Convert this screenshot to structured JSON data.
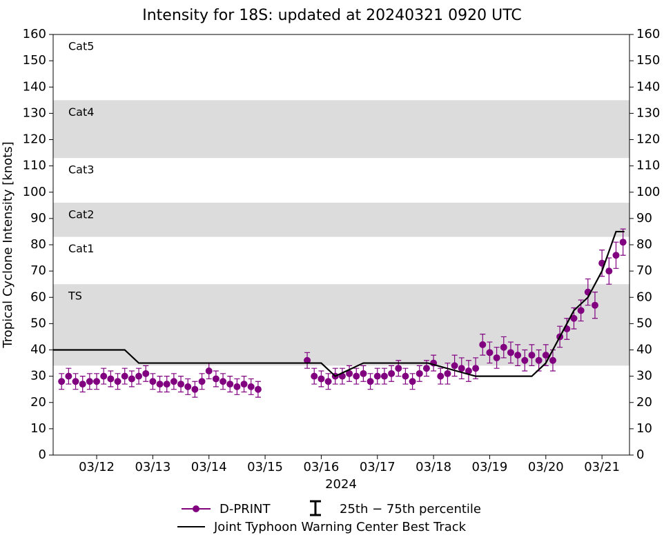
{
  "chart_data": {
    "type": "errorbar_line",
    "title": "Intensity for 18S: updated at 20240321 0920 UTC",
    "xlabel": "2024",
    "ylabel": "Tropical Cyclone Intensity [knots]",
    "xlim": [
      11.225,
      21.49
    ],
    "ylim": [
      0,
      160
    ],
    "xticks": [
      {
        "value": 12,
        "label": "03/12"
      },
      {
        "value": 13,
        "label": "03/13"
      },
      {
        "value": 14,
        "label": "03/14"
      },
      {
        "value": 15,
        "label": "03/15"
      },
      {
        "value": 16,
        "label": "03/16"
      },
      {
        "value": 17,
        "label": "03/17"
      },
      {
        "value": 18,
        "label": "03/18"
      },
      {
        "value": 19,
        "label": "03/19"
      },
      {
        "value": 20,
        "label": "03/20"
      },
      {
        "value": 21,
        "label": "03/21"
      }
    ],
    "yticks": [
      0,
      10,
      20,
      30,
      40,
      50,
      60,
      70,
      80,
      90,
      100,
      110,
      120,
      130,
      140,
      150,
      160
    ],
    "right_axis": true,
    "bands": [
      {
        "label": "TS",
        "range": [
          34,
          65
        ],
        "shaded": true
      },
      {
        "label": "Cat1",
        "range": [
          65,
          83
        ],
        "shaded": false
      },
      {
        "label": "Cat2",
        "range": [
          83,
          96
        ],
        "shaded": true
      },
      {
        "label": "Cat3",
        "range": [
          96,
          113
        ],
        "shaded": false
      },
      {
        "label": "Cat4",
        "range": [
          113,
          135
        ],
        "shaded": true
      },
      {
        "label": "Cat5",
        "range": [
          135,
          160
        ],
        "shaded": false
      }
    ],
    "band_color": "#dcdcdc",
    "errorbar_label": "25th − 75th percentile",
    "series": [
      {
        "name": "D-PRINT",
        "color": "#800080",
        "style": "markers",
        "x": [
          11.375,
          11.5,
          11.625,
          11.75,
          11.875,
          12,
          12.125,
          12.25,
          12.375,
          12.5,
          12.625,
          12.75,
          12.875,
          13,
          13.125,
          13.25,
          13.375,
          13.5,
          13.625,
          13.75,
          13.875,
          14,
          14.125,
          14.25,
          14.375,
          14.5,
          14.625,
          14.75,
          14.875,
          15.75,
          15.875,
          16,
          16.125,
          16.25,
          16.375,
          16.5,
          16.625,
          16.75,
          16.875,
          17,
          17.125,
          17.25,
          17.375,
          17.5,
          17.625,
          17.75,
          17.875,
          18,
          18.125,
          18.25,
          18.375,
          18.5,
          18.625,
          18.75,
          18.875,
          19,
          19.125,
          19.25,
          19.375,
          19.5,
          19.625,
          19.75,
          19.875,
          20,
          20.125,
          20.25,
          20.375,
          20.5,
          20.625,
          20.75,
          20.875,
          21,
          21.125,
          21.25,
          21.375
        ],
        "values": [
          28,
          30,
          28,
          27,
          28,
          28,
          30,
          29,
          28,
          30,
          29,
          30,
          31,
          28,
          27,
          27,
          28,
          27,
          26,
          25,
          28,
          32,
          29,
          28,
          27,
          26,
          27,
          26,
          25,
          36,
          30,
          29,
          28,
          30,
          30,
          31,
          30,
          31,
          28,
          30,
          30,
          31,
          33,
          30,
          28,
          31,
          33,
          35,
          30,
          31,
          34,
          33,
          32,
          33,
          42,
          39,
          37,
          41,
          39,
          38,
          36,
          38,
          36,
          38,
          36,
          45,
          48,
          52,
          55,
          62,
          57,
          73,
          70,
          76,
          81
        ],
        "yerr": [
          3,
          3,
          3,
          3,
          3,
          3,
          3,
          3,
          3,
          3,
          3,
          3,
          3,
          3,
          3,
          3,
          3,
          3,
          3,
          3,
          3,
          3,
          3,
          3,
          3,
          3,
          3,
          3,
          3,
          3,
          3,
          3,
          3,
          3,
          3,
          3,
          3,
          3,
          3,
          3,
          3,
          3,
          3,
          3,
          3,
          3,
          3,
          3,
          3,
          4,
          4,
          4,
          4,
          4,
          4,
          4,
          4,
          4,
          4,
          4,
          4,
          4,
          4,
          4,
          4,
          4,
          4,
          4,
          4,
          5,
          5,
          5,
          5,
          5,
          5
        ]
      },
      {
        "name": "Joint Typhoon Warning Center Best Track",
        "color": "#000000",
        "style": "line",
        "x": [
          11.225,
          12.5,
          12.75,
          16.0,
          16.25,
          16.75,
          17.9,
          18.75,
          19.75,
          20.0,
          20.25,
          20.5,
          20.75,
          21.0,
          21.25,
          21.4
        ],
        "values": [
          40,
          40,
          35,
          35,
          30,
          35,
          35,
          30,
          30,
          35,
          45,
          55,
          60,
          70,
          85,
          85
        ]
      }
    ]
  }
}
